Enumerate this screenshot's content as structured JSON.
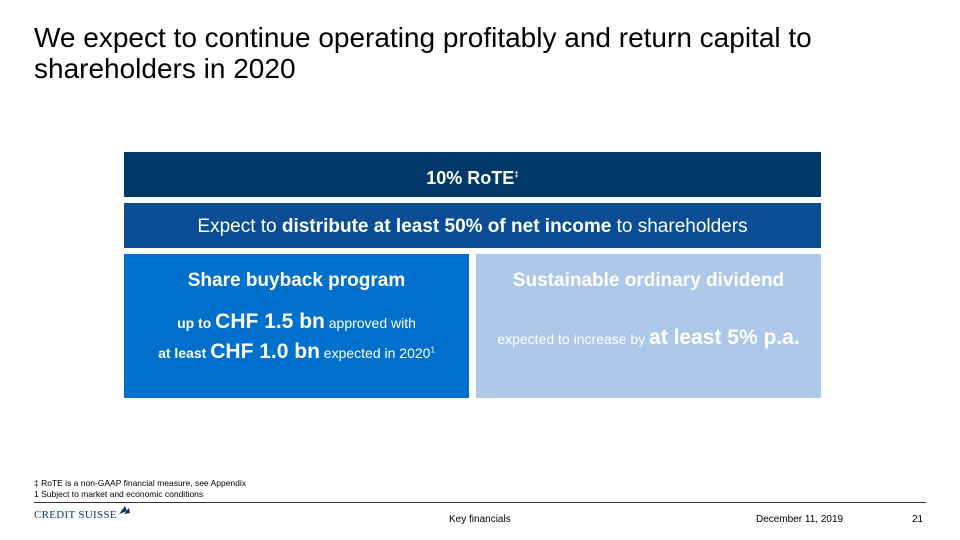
{
  "title": "We expect to continue operating profitably and return capital to shareholders in 2020",
  "rote": {
    "text": "10% RoTE",
    "mark": "‡"
  },
  "distribute": {
    "pre": "Expect to ",
    "bold": "distribute at least 50% of net income",
    "post": " to shareholders"
  },
  "buyback": {
    "heading": "Share buyback program",
    "l1_pre": "up to ",
    "l1_big": "CHF 1.5 bn",
    "l1_post": " approved with",
    "l2_pre": "at least ",
    "l2_big": "CHF 1.0 bn",
    "l2_post": " expected in 2020",
    "l2_sup": "1"
  },
  "dividend": {
    "heading": "Sustainable ordinary dividend",
    "pre": "expected to increase by ",
    "big": "at least 5% p.a."
  },
  "footnotes": [
    "‡ RoTE is a non-GAAP financial measure, see Appendix",
    "1 Subject to market and economic conditions"
  ],
  "footer": {
    "logo": "CREDIT SUISSE",
    "section": "Key financials",
    "date": "December 11, 2019",
    "page": "21"
  }
}
